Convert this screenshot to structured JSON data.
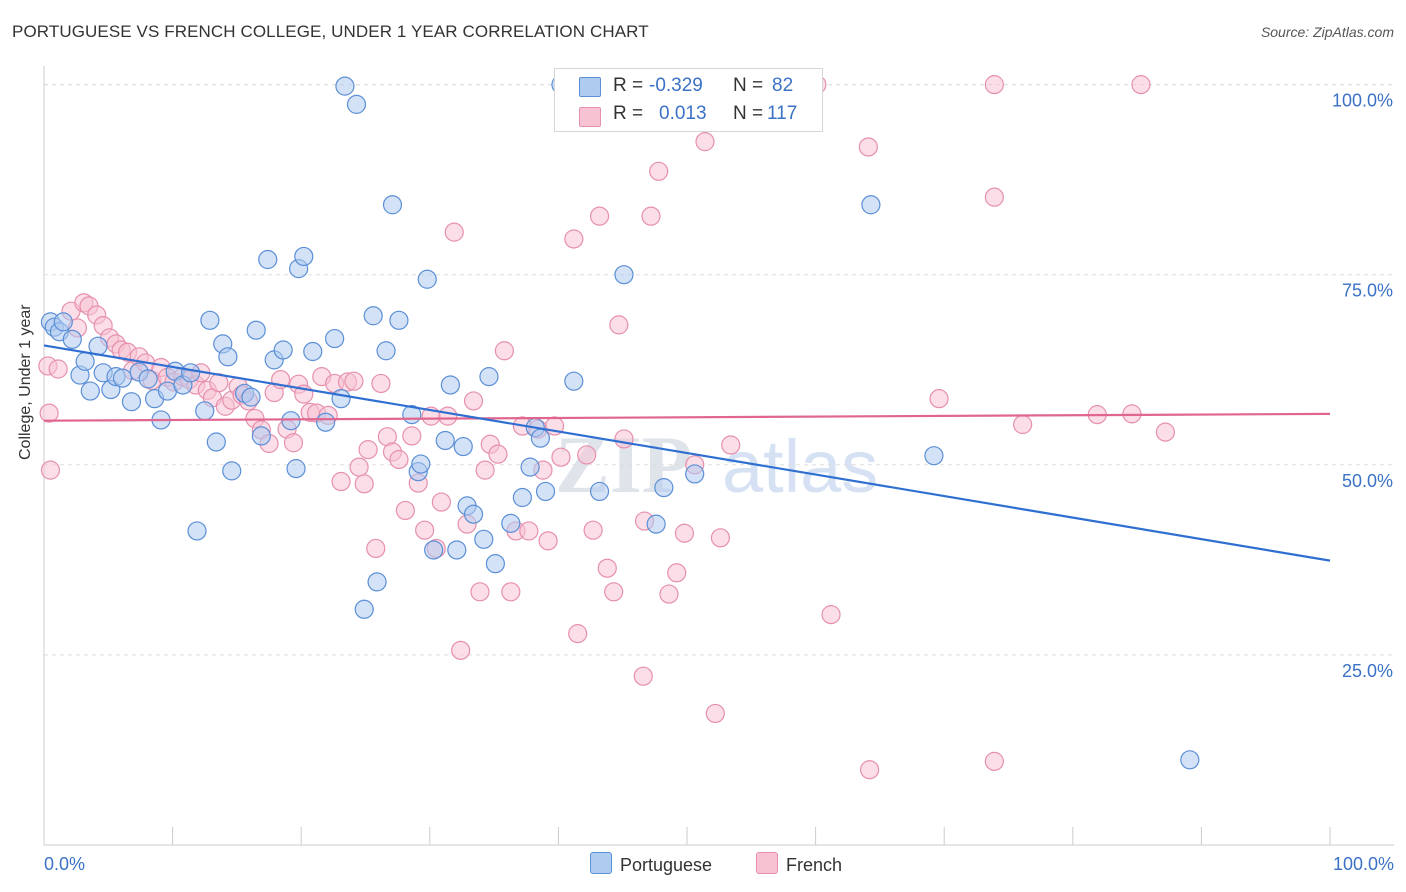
{
  "title": "PORTUGUESE VS FRENCH COLLEGE, UNDER 1 YEAR CORRELATION CHART",
  "source": "Source: ZipAtlas.com",
  "watermark": {
    "zip": "ZIP",
    "atlas": "atlas"
  },
  "legend": {
    "portuguese": {
      "r_label": "R =",
      "r_value": "-0.329",
      "n_label": "N =",
      "n_value": "82"
    },
    "french": {
      "r_label": "R =",
      "r_value": "0.013",
      "n_label": "N =",
      "n_value": "117"
    }
  },
  "colors": {
    "portuguese_fill": "#aecbf0",
    "portuguese_stroke": "#5b8fd6",
    "portuguese_line": "#2f6fd1",
    "french_fill": "#f7c3d3",
    "french_stroke": "#e690ad",
    "french_line": "#e0668f",
    "tick_label": "#3b72c6",
    "grid": "#dddddd"
  },
  "chart_data": {
    "type": "scatter",
    "title": "PORTUGUESE VS FRENCH COLLEGE, UNDER 1 YEAR CORRELATION CHART",
    "xlabel": "",
    "ylabel": "College, Under 1 year",
    "xlim": [
      0,
      100
    ],
    "ylim": [
      0,
      103.5
    ],
    "x_tick_labels": [
      "0.0%",
      "100.0%"
    ],
    "y_ticks": [
      25,
      50,
      75,
      100
    ],
    "y_tick_labels": [
      "25.0%",
      "50.0%",
      "75.0%",
      "100.0%"
    ],
    "grid": "horizontal dashed",
    "legend_position": "bottom-center",
    "series": [
      {
        "name": "Portuguese",
        "r": -0.329,
        "n": 82,
        "trend": {
          "x": [
            0,
            100
          ],
          "y": [
            65.7,
            37.4
          ]
        },
        "points": [
          [
            0.5,
            68.8
          ],
          [
            0.8,
            68.1
          ],
          [
            1.2,
            67.5
          ],
          [
            1.5,
            68.8
          ],
          [
            2.2,
            66.5
          ],
          [
            2.8,
            61.8
          ],
          [
            3.2,
            63.6
          ],
          [
            3.6,
            59.7
          ],
          [
            4.2,
            65.6
          ],
          [
            4.6,
            62.1
          ],
          [
            5.2,
            59.9
          ],
          [
            5.6,
            61.6
          ],
          [
            6.1,
            61.4
          ],
          [
            6.8,
            58.3
          ],
          [
            7.4,
            62.2
          ],
          [
            8.1,
            61.3
          ],
          [
            8.6,
            58.7
          ],
          [
            9.1,
            55.9
          ],
          [
            9.6,
            59.7
          ],
          [
            10.2,
            62.3
          ],
          [
            10.8,
            60.5
          ],
          [
            11.4,
            62.1
          ],
          [
            11.9,
            41.3
          ],
          [
            12.5,
            57.1
          ],
          [
            12.9,
            69.0
          ],
          [
            13.4,
            53.0
          ],
          [
            13.9,
            65.9
          ],
          [
            14.3,
            64.2
          ],
          [
            14.6,
            49.2
          ],
          [
            15.6,
            59.4
          ],
          [
            16.1,
            58.9
          ],
          [
            16.5,
            67.7
          ],
          [
            16.9,
            53.8
          ],
          [
            17.4,
            77.0
          ],
          [
            17.9,
            63.8
          ],
          [
            18.6,
            65.1
          ],
          [
            19.2,
            55.8
          ],
          [
            19.6,
            49.5
          ],
          [
            19.8,
            75.8
          ],
          [
            20.2,
            77.4
          ],
          [
            20.9,
            64.9
          ],
          [
            21.9,
            55.6
          ],
          [
            22.6,
            66.6
          ],
          [
            23.1,
            58.7
          ],
          [
            23.4,
            99.8
          ],
          [
            24.3,
            97.4
          ],
          [
            24.9,
            31.0
          ],
          [
            25.6,
            69.6
          ],
          [
            25.9,
            34.6
          ],
          [
            26.6,
            65.0
          ],
          [
            27.1,
            84.2
          ],
          [
            27.6,
            69.0
          ],
          [
            28.6,
            56.6
          ],
          [
            29.1,
            49.1
          ],
          [
            29.3,
            50.1
          ],
          [
            29.8,
            74.4
          ],
          [
            30.3,
            38.8
          ],
          [
            31.2,
            53.2
          ],
          [
            31.6,
            60.5
          ],
          [
            32.1,
            38.8
          ],
          [
            32.6,
            52.4
          ],
          [
            32.9,
            44.6
          ],
          [
            33.4,
            43.5
          ],
          [
            34.2,
            40.2
          ],
          [
            34.6,
            61.6
          ],
          [
            35.1,
            37.0
          ],
          [
            36.3,
            42.3
          ],
          [
            37.2,
            45.7
          ],
          [
            37.8,
            49.7
          ],
          [
            38.2,
            54.9
          ],
          [
            38.6,
            53.5
          ],
          [
            39.0,
            46.5
          ],
          [
            40.2,
            100.0
          ],
          [
            41.2,
            61.0
          ],
          [
            43.2,
            46.5
          ],
          [
            45.1,
            75.0
          ],
          [
            47.6,
            42.2
          ],
          [
            48.2,
            47.0
          ],
          [
            50.6,
            48.8
          ],
          [
            64.3,
            84.2
          ],
          [
            69.2,
            51.2
          ],
          [
            89.1,
            11.2
          ]
        ]
      },
      {
        "name": "French",
        "r": 0.013,
        "n": 117,
        "trend": {
          "x": [
            0,
            100
          ],
          "y": [
            55.8,
            56.7
          ]
        },
        "points": [
          [
            0.3,
            63.0
          ],
          [
            0.4,
            56.8
          ],
          [
            0.5,
            49.3
          ],
          [
            1.1,
            62.6
          ],
          [
            2.1,
            70.2
          ],
          [
            2.6,
            68.0
          ],
          [
            3.1,
            71.3
          ],
          [
            3.5,
            70.9
          ],
          [
            4.1,
            69.7
          ],
          [
            4.6,
            68.3
          ],
          [
            5.1,
            66.7
          ],
          [
            5.6,
            65.9
          ],
          [
            6.0,
            65.1
          ],
          [
            6.5,
            64.8
          ],
          [
            6.9,
            62.4
          ],
          [
            7.4,
            64.2
          ],
          [
            7.9,
            63.4
          ],
          [
            8.4,
            61.1
          ],
          [
            9.1,
            62.8
          ],
          [
            9.6,
            61.5
          ],
          [
            10.1,
            60.9
          ],
          [
            10.8,
            61.6
          ],
          [
            11.3,
            61.2
          ],
          [
            11.8,
            60.5
          ],
          [
            12.2,
            62.1
          ],
          [
            12.7,
            59.8
          ],
          [
            13.1,
            58.8
          ],
          [
            13.6,
            60.8
          ],
          [
            14.1,
            57.7
          ],
          [
            14.6,
            58.5
          ],
          [
            15.1,
            60.3
          ],
          [
            15.4,
            59.2
          ],
          [
            15.9,
            58.4
          ],
          [
            16.4,
            56.1
          ],
          [
            16.9,
            54.6
          ],
          [
            17.5,
            52.8
          ],
          [
            17.9,
            59.5
          ],
          [
            18.4,
            61.2
          ],
          [
            18.9,
            54.7
          ],
          [
            19.4,
            52.9
          ],
          [
            19.8,
            60.6
          ],
          [
            20.2,
            59.3
          ],
          [
            20.7,
            56.9
          ],
          [
            21.2,
            56.8
          ],
          [
            21.6,
            61.6
          ],
          [
            22.1,
            56.5
          ],
          [
            22.6,
            60.7
          ],
          [
            23.1,
            47.8
          ],
          [
            23.6,
            60.9
          ],
          [
            24.1,
            61.0
          ],
          [
            24.5,
            49.7
          ],
          [
            24.9,
            47.5
          ],
          [
            25.2,
            52.0
          ],
          [
            25.8,
            39.0
          ],
          [
            26.2,
            60.7
          ],
          [
            26.7,
            53.7
          ],
          [
            27.1,
            51.7
          ],
          [
            27.6,
            50.7
          ],
          [
            28.1,
            44.0
          ],
          [
            28.6,
            53.8
          ],
          [
            29.1,
            47.6
          ],
          [
            29.6,
            41.4
          ],
          [
            30.1,
            56.4
          ],
          [
            30.5,
            39.0
          ],
          [
            30.9,
            45.1
          ],
          [
            31.4,
            56.4
          ],
          [
            31.9,
            80.6
          ],
          [
            32.4,
            25.6
          ],
          [
            32.9,
            42.2
          ],
          [
            33.4,
            58.4
          ],
          [
            33.9,
            33.3
          ],
          [
            34.3,
            49.3
          ],
          [
            34.7,
            52.7
          ],
          [
            35.3,
            51.4
          ],
          [
            35.8,
            65.0
          ],
          [
            36.3,
            33.3
          ],
          [
            36.7,
            41.3
          ],
          [
            37.2,
            55.1
          ],
          [
            37.7,
            41.3
          ],
          [
            38.4,
            54.7
          ],
          [
            38.8,
            49.3
          ],
          [
            39.2,
            40.0
          ],
          [
            39.7,
            55.1
          ],
          [
            40.2,
            51.0
          ],
          [
            40.8,
            100.0
          ],
          [
            41.2,
            79.7
          ],
          [
            41.5,
            27.8
          ],
          [
            42.2,
            51.3
          ],
          [
            42.7,
            41.4
          ],
          [
            43.2,
            82.7
          ],
          [
            43.8,
            36.4
          ],
          [
            44.3,
            33.3
          ],
          [
            44.7,
            68.4
          ],
          [
            45.1,
            53.4
          ],
          [
            46.6,
            22.2
          ],
          [
            46.7,
            42.6
          ],
          [
            47.2,
            82.7
          ],
          [
            47.8,
            88.6
          ],
          [
            48.6,
            33.0
          ],
          [
            49.2,
            35.8
          ],
          [
            49.8,
            41.0
          ],
          [
            50.6,
            50.0
          ],
          [
            51.4,
            92.5
          ],
          [
            52.2,
            17.3
          ],
          [
            52.6,
            40.4
          ],
          [
            53.4,
            52.6
          ],
          [
            60.1,
            100.0
          ],
          [
            61.2,
            30.3
          ],
          [
            64.1,
            91.8
          ],
          [
            64.2,
            9.9
          ],
          [
            69.6,
            58.7
          ],
          [
            73.9,
            11.0
          ],
          [
            73.9,
            100.0
          ],
          [
            73.9,
            85.2
          ],
          [
            76.1,
            55.3
          ],
          [
            81.9,
            56.6
          ],
          [
            84.6,
            56.7
          ],
          [
            85.3,
            100.0
          ],
          [
            87.2,
            54.3
          ]
        ]
      }
    ]
  }
}
